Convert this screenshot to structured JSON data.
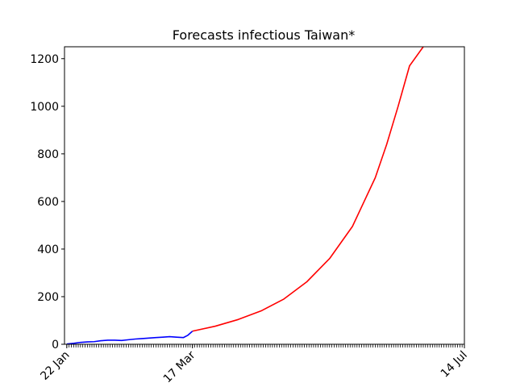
{
  "chart_data": {
    "type": "line",
    "title": "Forecasts infectious Taiwan*",
    "xlabel": "",
    "ylabel": "",
    "x_tick_labels": [
      "22 Jan",
      "17 Mar",
      "14 Jul"
    ],
    "x_tick_dates": [
      "2020-01-22",
      "2020-03-17",
      "2020-07-14"
    ],
    "xlim": [
      "2020-01-21",
      "2020-07-14"
    ],
    "ylim": [
      0,
      1250
    ],
    "y_ticks": [
      0,
      200,
      400,
      600,
      800,
      1000,
      1200
    ],
    "grid": false,
    "legend": "none",
    "series": [
      {
        "color": "#0000ff",
        "x": [
          "2020-01-22",
          "2020-01-25",
          "2020-01-28",
          "2020-01-31",
          "2020-02-03",
          "2020-02-06",
          "2020-02-09",
          "2020-02-12",
          "2020-02-15",
          "2020-02-18",
          "2020-02-21",
          "2020-02-24",
          "2020-02-27",
          "2020-03-01",
          "2020-03-04",
          "2020-03-07",
          "2020-03-10",
          "2020-03-13",
          "2020-03-15",
          "2020-03-17"
        ],
        "values": [
          1,
          4,
          8,
          10,
          11,
          15,
          17,
          17,
          16,
          19,
          22,
          24,
          26,
          28,
          30,
          32,
          30,
          28,
          38,
          55
        ]
      },
      {
        "color": "#ff0000",
        "x": [
          "2020-03-17",
          "2020-03-27",
          "2020-04-06",
          "2020-04-16",
          "2020-04-26",
          "2020-05-06",
          "2020-05-16",
          "2020-05-26",
          "2020-06-05",
          "2020-06-10",
          "2020-06-15",
          "2020-06-20",
          "2020-06-26"
        ],
        "values": [
          55,
          76,
          104,
          140,
          190,
          262,
          360,
          495,
          700,
          840,
          1000,
          1170,
          1250
        ]
      }
    ]
  }
}
